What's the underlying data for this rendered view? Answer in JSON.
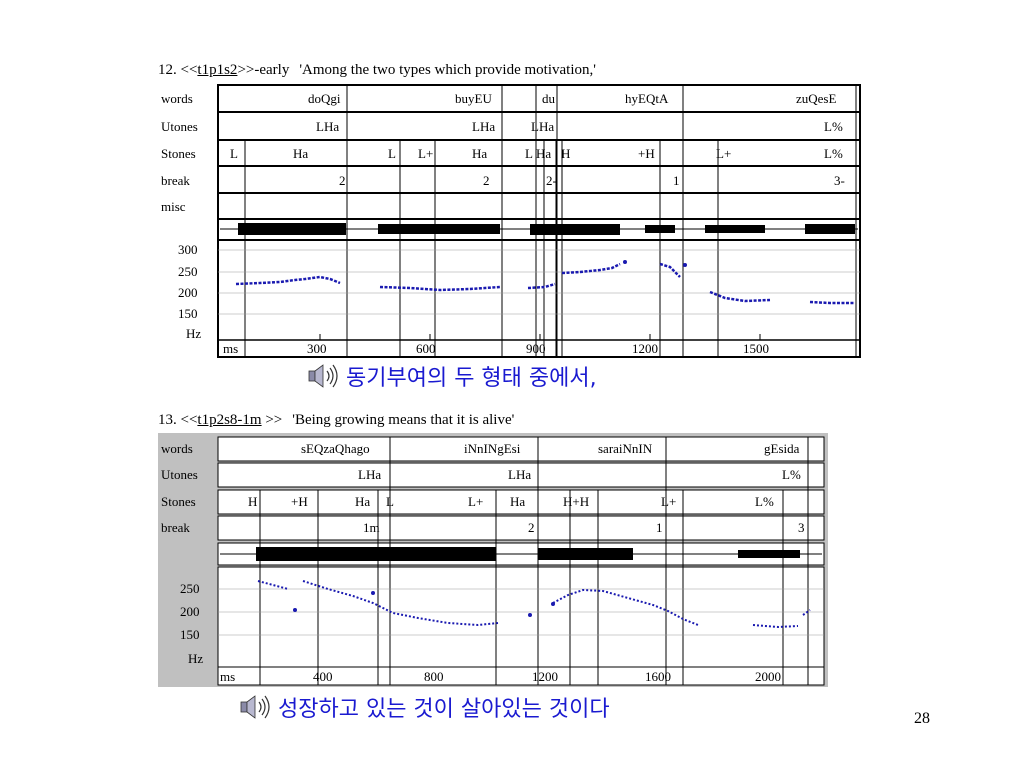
{
  "page_number": "28",
  "panels": [
    {
      "num": "12. <<",
      "link": "t1p1s2",
      "suffix": ">>-early",
      "quote": "'Among the two types which provide motivation,'",
      "row_labels": [
        "words",
        "Utones",
        "Stones",
        "break",
        "misc"
      ],
      "words": [
        "doQgi",
        "buyEU",
        "du",
        "hyEQtA",
        "zuQesE"
      ],
      "utones": [
        "LHa",
        "LHa",
        "LHa",
        "L%"
      ],
      "stones": [
        "L",
        "Ha",
        "L",
        "L+",
        "Ha",
        "L",
        "Ha",
        "H",
        "+H",
        "L+",
        "L%"
      ],
      "breaks": [
        "2",
        "2",
        "2-",
        "1",
        "3-"
      ],
      "y_ticks": [
        "300",
        "250",
        "200",
        "150"
      ],
      "y_unit": "Hz",
      "x_unit": "ms",
      "x_ticks": [
        "300",
        "600",
        "900",
        "1200",
        "1500"
      ],
      "caption": "동기부여의 두 형태 중에서,"
    },
    {
      "num": "13. <<",
      "link": "t1p2s8-1m",
      "suffix": ">>",
      "quote": "'Being growing means that it is alive'",
      "row_labels": [
        "words",
        "Utones",
        "Stones",
        "break"
      ],
      "words": [
        "sEQzaQhago",
        "iNnINgEsi",
        "saraiNnIN",
        "gEsida"
      ],
      "utones": [
        "LHa",
        "LHa",
        "L%"
      ],
      "stones": [
        "H",
        "+H",
        "Ha",
        "L",
        "L+",
        "Ha",
        "H+H",
        "L+",
        "L%"
      ],
      "breaks": [
        "1m",
        "2",
        "1",
        "3"
      ],
      "y_ticks": [
        "250",
        "200",
        "150"
      ],
      "y_unit": "Hz",
      "x_unit": "ms",
      "x_ticks": [
        "400",
        "800",
        "1200",
        "1600",
        "2000"
      ],
      "caption": "성장하고 있는 것이 살아있는 것이다"
    }
  ]
}
